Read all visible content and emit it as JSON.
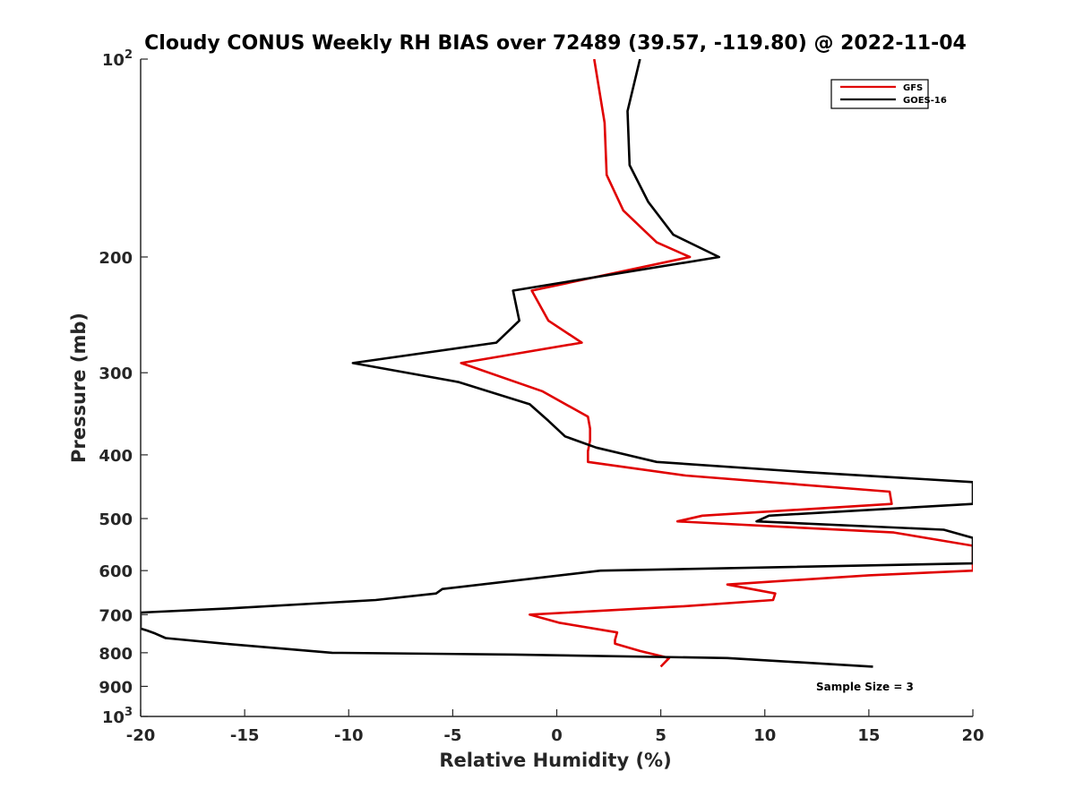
{
  "chart_data": {
    "type": "line",
    "title": "Cloudy CONUS Weekly RH BIAS over 72489 (39.57, -119.80) @ 2022-11-04",
    "xlabel": "Relative Humidity (%)",
    "ylabel": "Pressure (mb)",
    "xlim": [
      -20,
      20
    ],
    "ylim": [
      100,
      1000
    ],
    "yscale": "log",
    "yreversed": true,
    "grid": false,
    "legend_position": "top-right",
    "x_ticks": [
      "-20",
      "-15",
      "-10",
      "-5",
      "0",
      "5",
      "10",
      "15",
      "20"
    ],
    "y_ticks": [
      {
        "value": 100,
        "base": "10",
        "exp": "2"
      },
      {
        "value": 200,
        "label": "200"
      },
      {
        "value": 300,
        "label": "300"
      },
      {
        "value": 400,
        "label": "400"
      },
      {
        "value": 500,
        "label": "500"
      },
      {
        "value": 600,
        "label": "600"
      },
      {
        "value": 700,
        "label": "700"
      },
      {
        "value": 800,
        "label": "800"
      },
      {
        "value": 900,
        "label": "900"
      },
      {
        "value": 1000,
        "base": "10",
        "exp": "3"
      }
    ],
    "series": [
      {
        "name": "GFS",
        "color": "#e00000",
        "points": [
          [
            1.8,
            100
          ],
          [
            2.3,
            125
          ],
          [
            2.4,
            150
          ],
          [
            3.2,
            170
          ],
          [
            4.8,
            190
          ],
          [
            6.4,
            200
          ],
          [
            -1.2,
            225
          ],
          [
            -0.4,
            250
          ],
          [
            1.2,
            270
          ],
          [
            -4.6,
            290
          ],
          [
            -0.7,
            320
          ],
          [
            1.5,
            350
          ],
          [
            1.6,
            365
          ],
          [
            1.6,
            380
          ],
          [
            1.5,
            395
          ],
          [
            1.5,
            410
          ],
          [
            6.2,
            430
          ],
          [
            16.0,
            455
          ],
          [
            16.1,
            475
          ],
          [
            7.0,
            495
          ],
          [
            5.8,
            505
          ],
          [
            16.2,
            525
          ],
          [
            20.0,
            550
          ],
          [
            20.0,
            600
          ],
          [
            15.0,
            610
          ],
          [
            8.2,
            630
          ],
          [
            10.5,
            650
          ],
          [
            10.4,
            665
          ],
          [
            6.0,
            680
          ],
          [
            -1.3,
            700
          ],
          [
            0.1,
            720
          ],
          [
            2.9,
            745
          ],
          [
            2.8,
            765
          ],
          [
            2.8,
            775
          ],
          [
            4.0,
            795
          ],
          [
            5.4,
            815
          ],
          [
            5.0,
            840
          ]
        ]
      },
      {
        "name": "GOES-16",
        "color": "#000000",
        "points": [
          [
            4.0,
            100
          ],
          [
            3.4,
            120
          ],
          [
            3.5,
            145
          ],
          [
            4.4,
            165
          ],
          [
            5.6,
            185
          ],
          [
            7.8,
            200
          ],
          [
            -2.1,
            225
          ],
          [
            -1.8,
            250
          ],
          [
            -2.9,
            270
          ],
          [
            -9.8,
            290
          ],
          [
            -4.7,
            310
          ],
          [
            -1.3,
            335
          ],
          [
            -0.4,
            355
          ],
          [
            0.4,
            375
          ],
          [
            1.9,
            390
          ],
          [
            4.8,
            410
          ],
          [
            12.0,
            425
          ],
          [
            20.0,
            440
          ],
          [
            20.0,
            475
          ],
          [
            10.2,
            495
          ],
          [
            9.6,
            505
          ],
          [
            18.6,
            520
          ],
          [
            20.0,
            535
          ],
          [
            20.0,
            585
          ],
          [
            2.1,
            600
          ],
          [
            -5.5,
            640
          ],
          [
            -5.8,
            650
          ],
          [
            -8.7,
            665
          ],
          [
            -15.8,
            685
          ],
          [
            -20.0,
            695
          ],
          [
            -20.0,
            735
          ],
          [
            -19.7,
            740
          ],
          [
            -19.3,
            748
          ],
          [
            -18.8,
            760
          ],
          [
            -16.0,
            775
          ],
          [
            -10.8,
            800
          ],
          [
            -2.0,
            805
          ],
          [
            8.2,
            815
          ],
          [
            15.2,
            840
          ]
        ]
      }
    ],
    "annotations": [
      "Sample Size = 3"
    ]
  }
}
